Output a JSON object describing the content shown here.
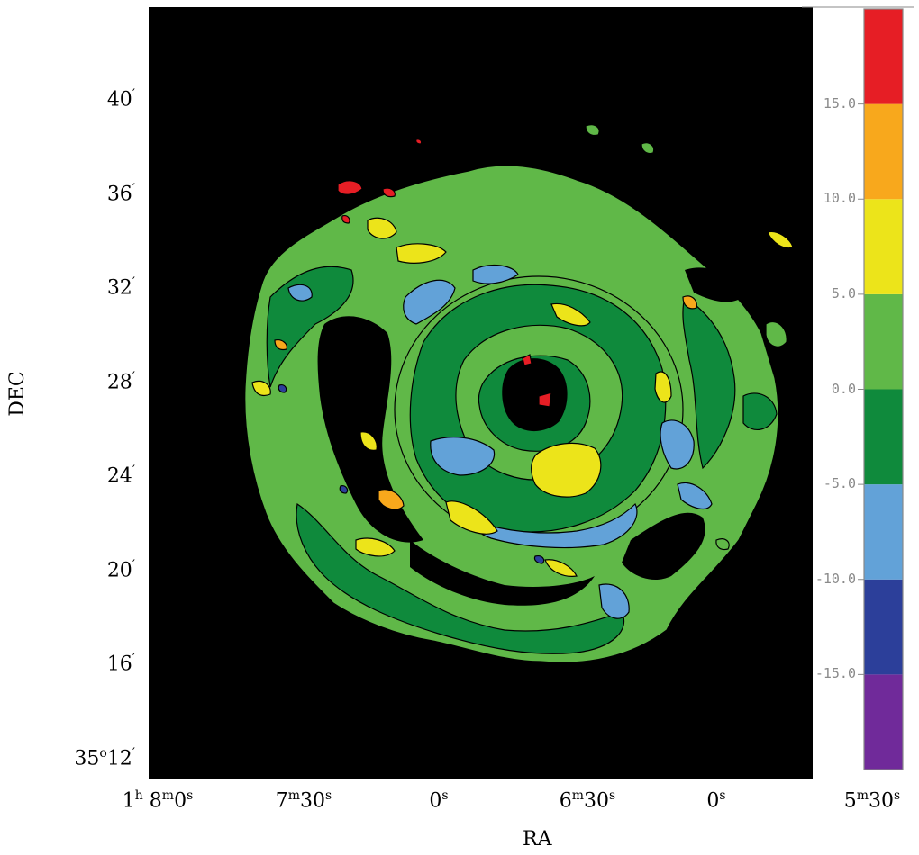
{
  "chart_data": {
    "type": "heatmap",
    "xlabel": "RA",
    "ylabel": "DEC",
    "x_ticks": [
      {
        "h": "1",
        "h_unit": "h",
        "m": "8",
        "m_unit": "m",
        "s": "0",
        "s_unit": "s"
      },
      {
        "h": "",
        "h_unit": "",
        "m": "7",
        "m_unit": "m",
        "s": "30",
        "s_unit": "s"
      },
      {
        "h": "",
        "h_unit": "",
        "m": "",
        "m_unit": "",
        "s": "0",
        "s_unit": "s"
      },
      {
        "h": "",
        "h_unit": "",
        "m": "6",
        "m_unit": "m",
        "s": "30",
        "s_unit": "s"
      },
      {
        "h": "",
        "h_unit": "",
        "m": "",
        "m_unit": "",
        "s": "0",
        "s_unit": "s"
      },
      {
        "h": "",
        "h_unit": "",
        "m": "5",
        "m_unit": "m",
        "s": "30",
        "s_unit": "s"
      }
    ],
    "y_ticks": [
      {
        "deg": "",
        "arcmin": "40"
      },
      {
        "deg": "",
        "arcmin": "36"
      },
      {
        "deg": "",
        "arcmin": "32"
      },
      {
        "deg": "",
        "arcmin": "28"
      },
      {
        "deg": "",
        "arcmin": "24"
      },
      {
        "deg": "",
        "arcmin": "20"
      },
      {
        "deg": "",
        "arcmin": "16"
      },
      {
        "deg": "35",
        "arcmin": "12"
      }
    ],
    "colorbar": {
      "levels": [
        -20,
        -15,
        -10,
        -5,
        0,
        5,
        10,
        15,
        20
      ],
      "colors": [
        "#702a9a",
        "#2c3f9a",
        "#62a2d8",
        "#0f8a3c",
        "#60b848",
        "#ece41a",
        "#f8a81c",
        "#e61e25"
      ],
      "tick_labels": [
        "15.0",
        "10.0",
        "5.0",
        "0.0",
        "-5.0",
        "-10.0",
        "-15.0"
      ],
      "tick_values": [
        15,
        10,
        5,
        0,
        -5,
        -10,
        -15
      ]
    },
    "background_color": "#000000",
    "grid": false
  }
}
